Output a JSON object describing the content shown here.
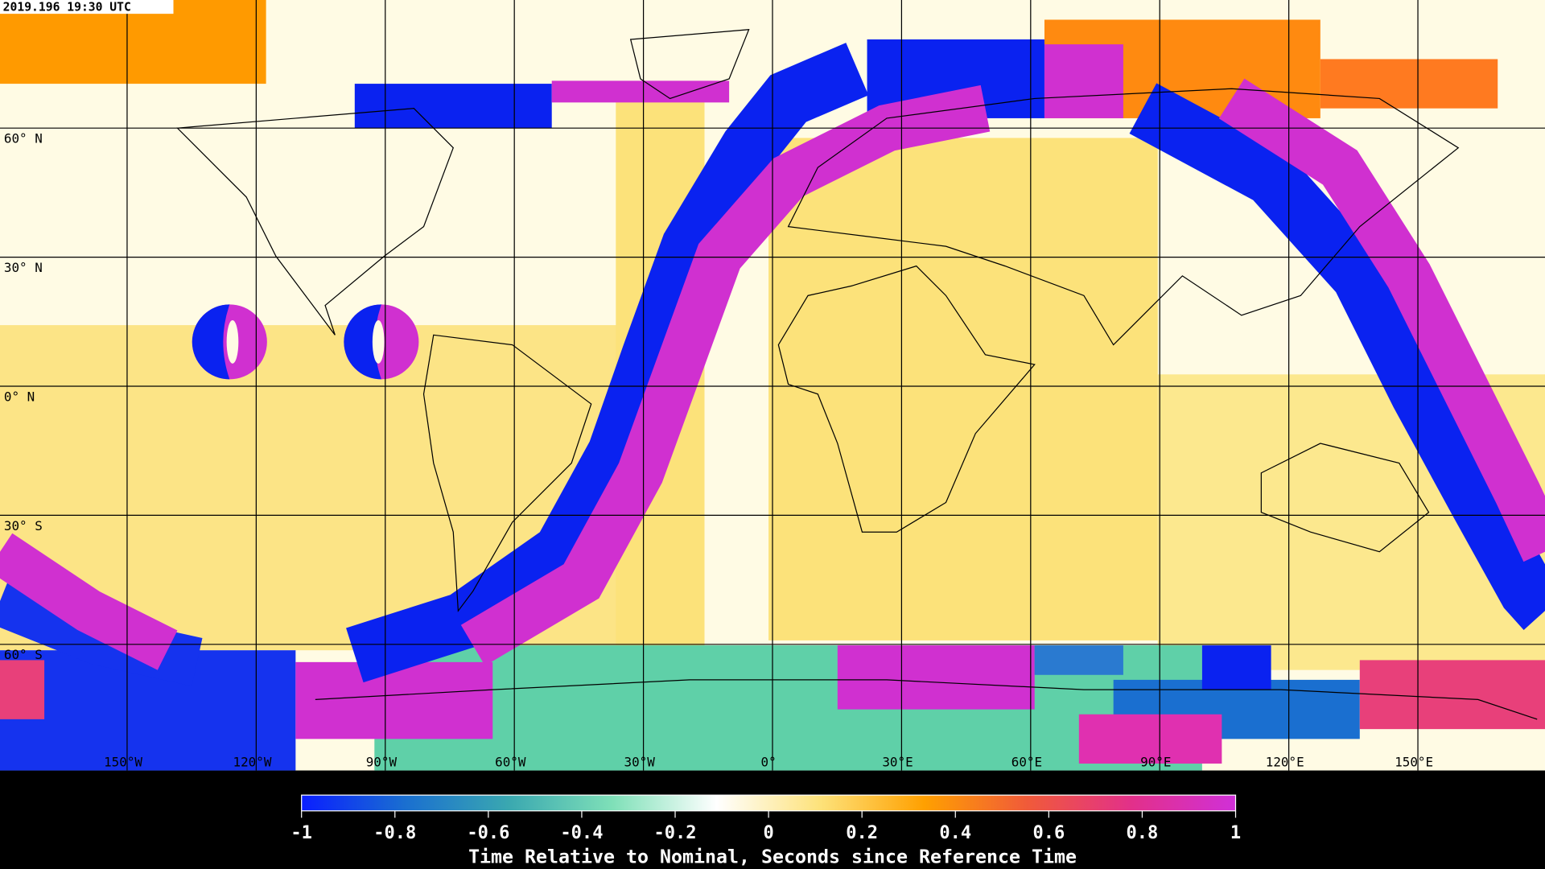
{
  "timestamp": "2019.196 19:30 UTC",
  "grid": {
    "latitudes": [
      {
        "value": 60,
        "label": "60° N"
      },
      {
        "value": 30,
        "label": "30° N"
      },
      {
        "value": 0,
        "label": "0° N"
      },
      {
        "value": -30,
        "label": "30° S"
      },
      {
        "value": -60,
        "label": "60° S"
      }
    ],
    "longitudes": [
      {
        "value": -150,
        "label": "150°W"
      },
      {
        "value": -120,
        "label": "120°W"
      },
      {
        "value": -90,
        "label": "90°W"
      },
      {
        "value": -60,
        "label": "60°W"
      },
      {
        "value": -30,
        "label": "30°W"
      },
      {
        "value": 0,
        "label": "0°"
      },
      {
        "value": 30,
        "label": "30°E"
      },
      {
        "value": 60,
        "label": "60°E"
      },
      {
        "value": 90,
        "label": "90°E"
      },
      {
        "value": 120,
        "label": "120°E"
      },
      {
        "value": 150,
        "label": "150°E"
      }
    ]
  },
  "colorbar": {
    "lim": [
      -1,
      1
    ],
    "ticks": [
      -1,
      -0.8,
      -0.6,
      -0.4,
      -0.2,
      0,
      0.2,
      0.4,
      0.6,
      0.8,
      1
    ],
    "colors": [
      "#0a1eff",
      "#1a6fd0",
      "#3aa8b0",
      "#7fe0b8",
      "#ffffff",
      "#fde27a",
      "#ffa000",
      "#f05a3a",
      "#e2308a",
      "#d030d8"
    ],
    "label": "Time Relative to Nominal, Seconds since Reference Time"
  }
}
